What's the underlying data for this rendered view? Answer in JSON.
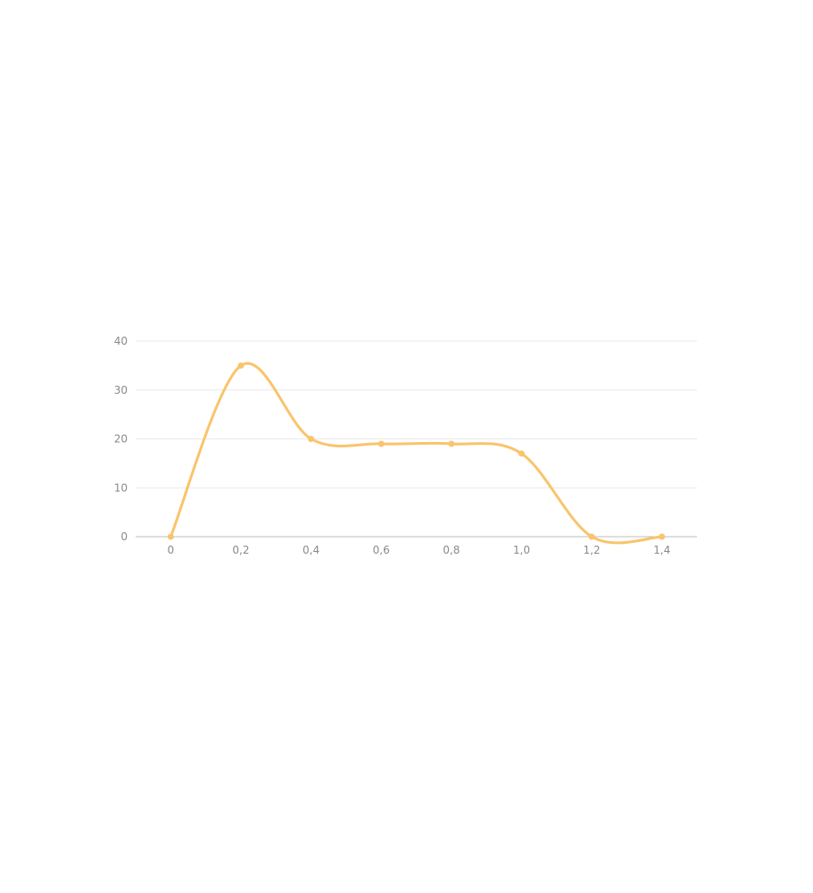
{
  "chart_data": {
    "type": "line",
    "x_tick_labels": [
      "0",
      "0,2",
      "0,4",
      "0,6",
      "0,8",
      "1,0",
      "1,2",
      "1,4"
    ],
    "y_tick_labels": [
      "0",
      "10",
      "20",
      "30",
      "40"
    ],
    "x": [
      0,
      0.2,
      0.4,
      0.6,
      0.8,
      1.0,
      1.2,
      1.4
    ],
    "y_ticks": [
      0,
      10,
      20,
      30,
      40
    ],
    "series": [
      {
        "values": [
          0,
          35,
          20,
          19,
          19,
          17,
          0,
          0
        ],
        "color": "#f9c46b"
      }
    ],
    "xlim": [
      -0.1,
      1.5
    ],
    "ylim": [
      0,
      40
    ],
    "curve": "smooth",
    "grid": "horizontal",
    "title": "",
    "xlabel": "",
    "ylabel": ""
  }
}
